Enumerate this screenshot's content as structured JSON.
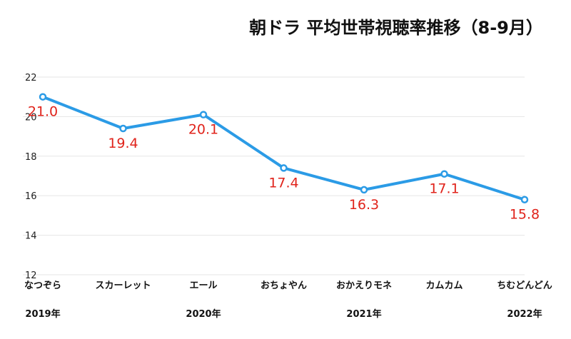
{
  "chart_data": {
    "type": "line",
    "title": "朝ドラ 平均世帯視聴率推移（8-9月）",
    "categories": [
      "なつぞら",
      "スカーレット",
      "エール",
      "おちょやん",
      "おかえりモネ",
      "カムカム",
      "ちむどんどん"
    ],
    "years": [
      {
        "label": "2019年",
        "category_index": 0
      },
      {
        "label": "2020年",
        "category_index": 2
      },
      {
        "label": "2021年",
        "category_index": 4
      },
      {
        "label": "2022年",
        "category_index": 6
      }
    ],
    "series": [
      {
        "values": [
          21.0,
          19.4,
          20.1,
          17.4,
          16.3,
          17.1,
          15.8
        ],
        "color": "#2b9be6"
      }
    ],
    "data_labels": [
      "21.0",
      "19.4",
      "20.1",
      "17.4",
      "16.3",
      "17.1",
      "15.8"
    ],
    "ylim": [
      12,
      22
    ],
    "yticks": [
      "12",
      "14",
      "16",
      "18",
      "20",
      "22"
    ],
    "grid": true,
    "label_color": "#e0231b"
  }
}
